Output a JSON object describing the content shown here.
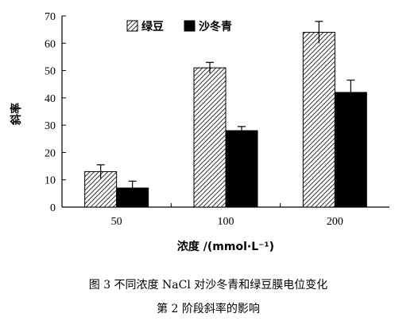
{
  "chart_data": {
    "type": "bar",
    "categories": [
      "50",
      "100",
      "200"
    ],
    "series": [
      {
        "name": "绿豆",
        "values": [
          13,
          51,
          64
        ],
        "errors": [
          2.5,
          2.0,
          4.0
        ],
        "fill": "hatched"
      },
      {
        "name": "沙冬青",
        "values": [
          7,
          28,
          42
        ],
        "errors": [
          2.5,
          1.5,
          4.5
        ],
        "fill": "solid"
      }
    ],
    "xlabel": "浓度 /(mmol·L⁻¹)",
    "ylabel": "斜率",
    "ylim": [
      0,
      70
    ],
    "yticks": [
      "0",
      "10",
      "20",
      "30",
      "40",
      "50",
      "60",
      "70"
    ],
    "grid": false,
    "legend_position": "top-left"
  },
  "caption": {
    "line1": "图 3   不同浓度 NaCl 对沙冬青和绿豆膜电位变化",
    "line2": "第 2 阶段斜率的影响"
  },
  "colors": {
    "solid_fill": "#000000",
    "hatch": "#000000",
    "background": "#ffffff"
  }
}
